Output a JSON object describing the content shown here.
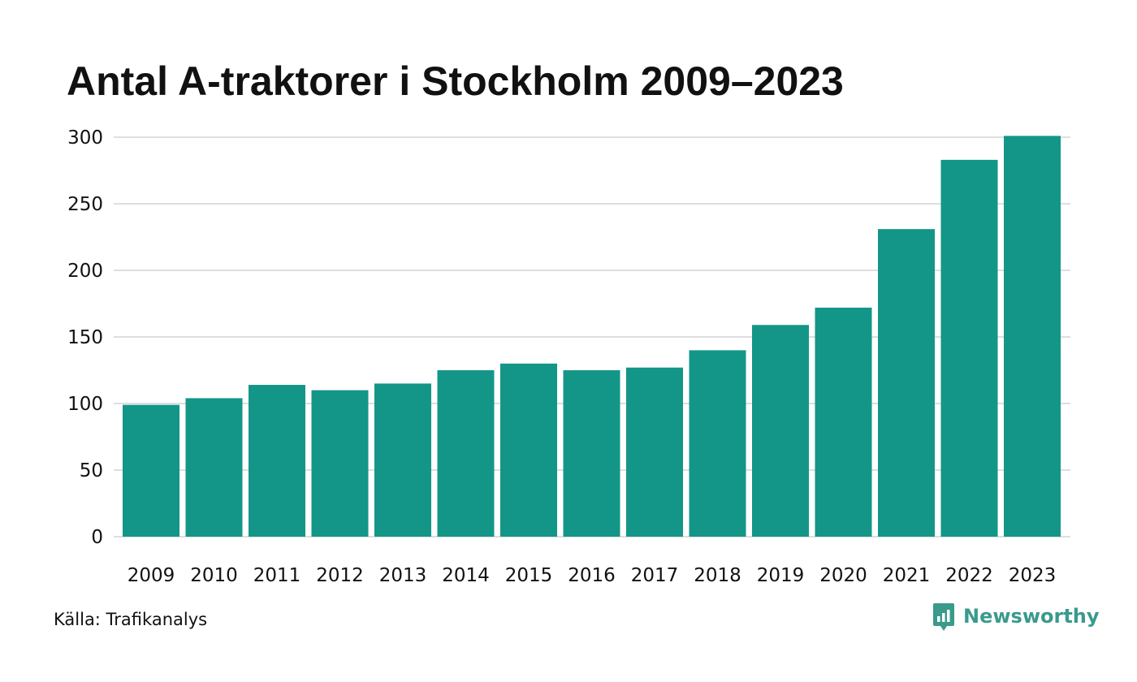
{
  "chart_data": {
    "type": "bar",
    "title": "Antal A-traktorer i Stockholm 2009–2023",
    "categories": [
      "2009",
      "2010",
      "2011",
      "2012",
      "2013",
      "2014",
      "2015",
      "2016",
      "2017",
      "2018",
      "2019",
      "2020",
      "2021",
      "2022",
      "2023"
    ],
    "values": [
      99,
      104,
      114,
      110,
      115,
      125,
      130,
      125,
      127,
      140,
      159,
      172,
      231,
      283,
      301
    ],
    "xlabel": "",
    "ylabel": "",
    "ylim": [
      0,
      300
    ],
    "yticks": [
      0,
      50,
      100,
      150,
      200,
      250,
      300
    ],
    "grid": true,
    "legend": "none",
    "bar_color": "#139688"
  },
  "footer": {
    "source": "Källa: Trafikanalys",
    "brand_name": "Newsworthy",
    "brand_icon": "bar-chart-speech-bubble-icon",
    "brand_color": "#3a9a8c"
  }
}
